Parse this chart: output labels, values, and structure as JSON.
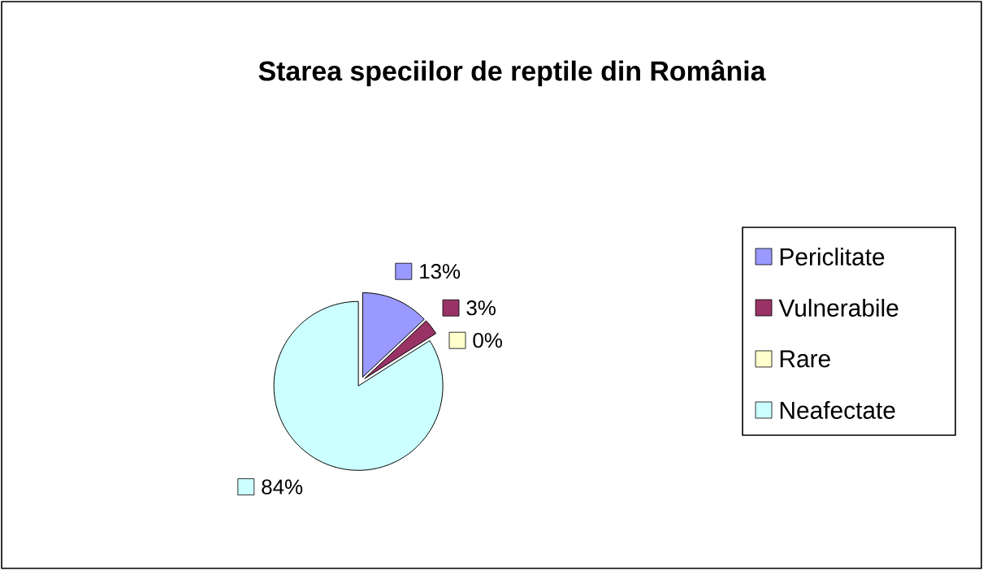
{
  "chart_data": {
    "type": "pie",
    "title": "Starea speciilor de reptile din România",
    "categories": [
      "Periclitate",
      "Vulnerabile",
      "Rare",
      "Neafectate"
    ],
    "values": [
      13,
      3,
      0,
      84
    ],
    "colors": [
      "#9999ff",
      "#993366",
      "#ffffcc",
      "#ccffff"
    ],
    "data_labels": true,
    "value_labels": [
      "13%",
      "3%",
      "0%",
      "84%"
    ],
    "legend": "right"
  }
}
